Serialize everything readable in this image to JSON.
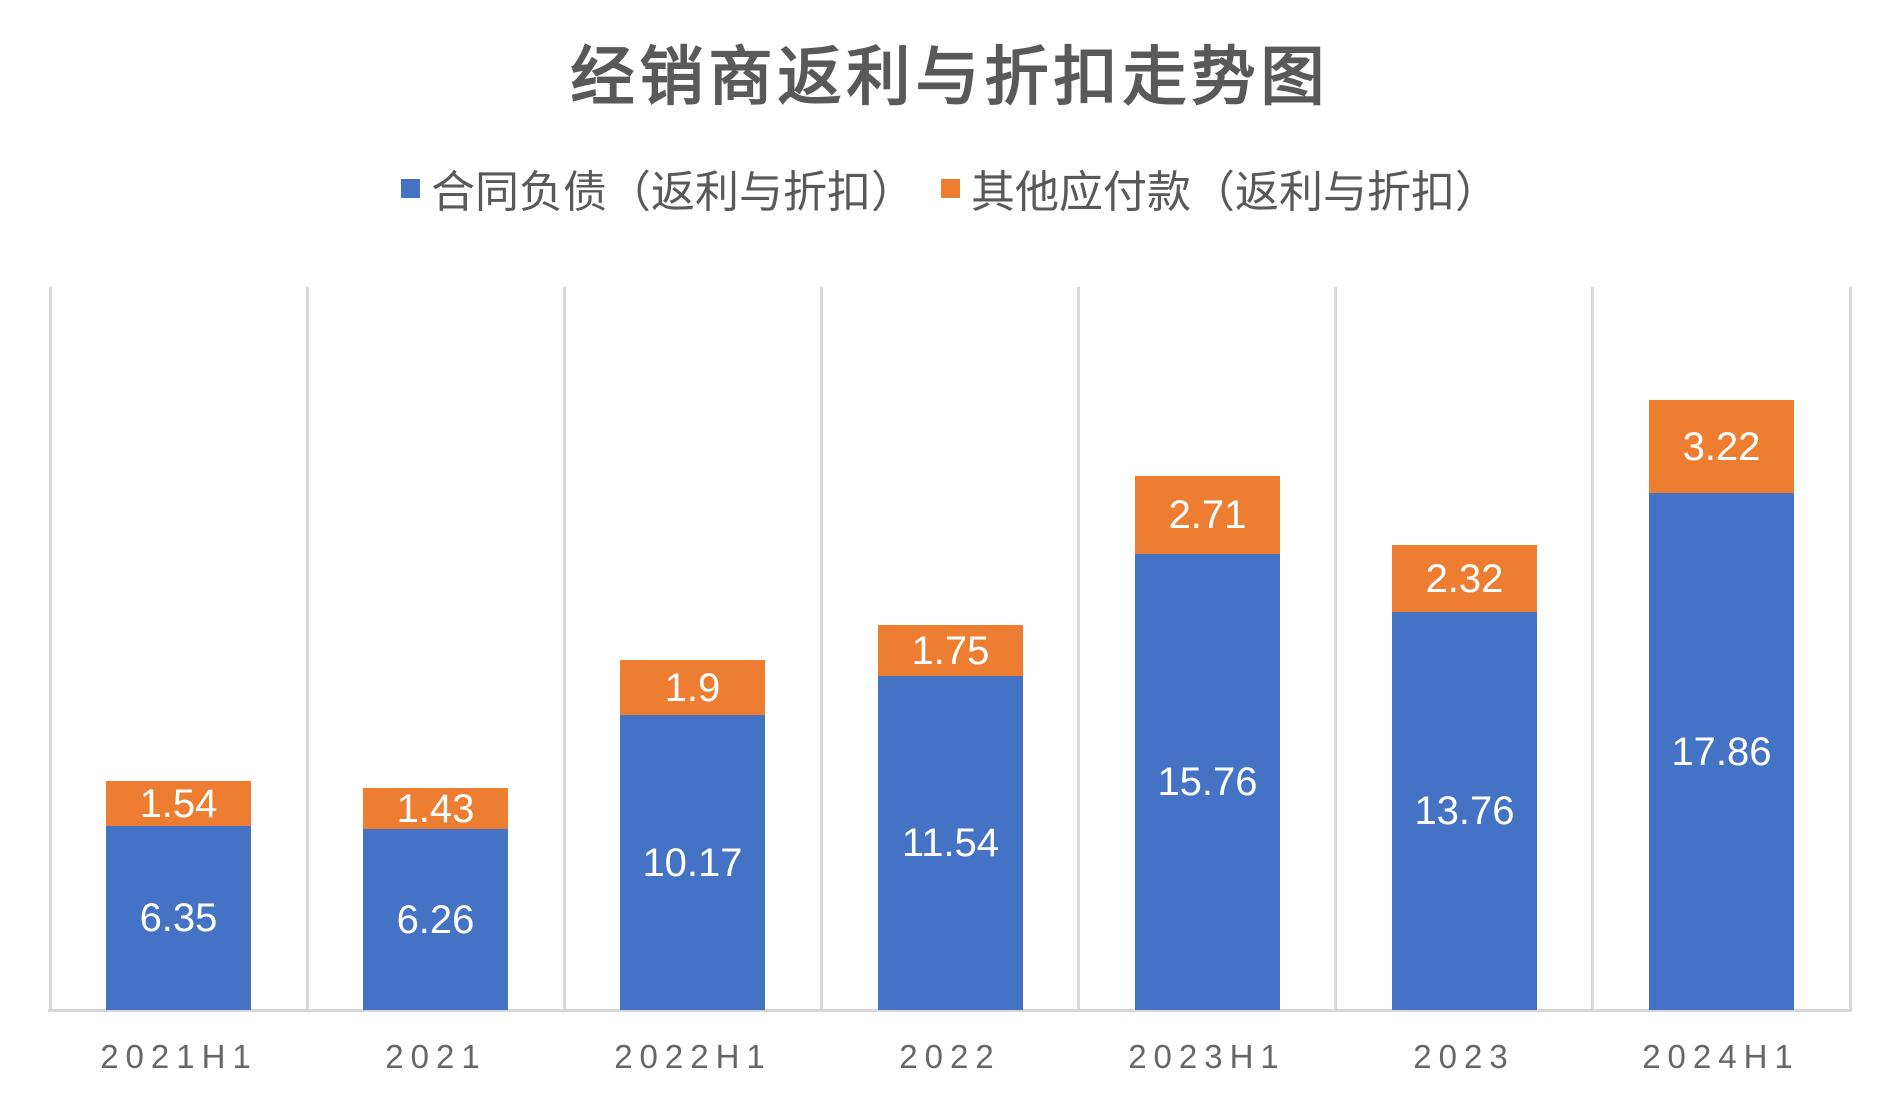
{
  "chart_data": {
    "type": "bar",
    "stacked": true,
    "title": "经销商返利与折扣走势图",
    "categories": [
      "2021H1",
      "2021",
      "2022H1",
      "2022",
      "2023H1",
      "2023",
      "2024H1"
    ],
    "series": [
      {
        "name": "合同负债（返利与折扣）",
        "color": "#4472C4",
        "values": [
          6.35,
          6.26,
          10.17,
          11.54,
          15.76,
          13.76,
          17.86
        ]
      },
      {
        "name": "其他应付款（返利与折扣）",
        "color": "#ED7D31",
        "values": [
          1.54,
          1.43,
          1.9,
          1.75,
          2.71,
          2.32,
          3.22
        ]
      }
    ],
    "xlabel": "",
    "ylabel": "",
    "ylim": [
      0,
      25
    ],
    "grid": "vertical-category-separators-only",
    "legend_position": "top-center",
    "data_labels": "inside-center-white"
  },
  "colors": {
    "background": "#FFFFFF",
    "gridline": "#D9D9D9",
    "axis_line": "#D6D6D6",
    "title_text": "#595959",
    "legend_text": "#595959",
    "category_text": "#666666",
    "data_label_text": "#FFFFFF",
    "series_blue": "#4472C4",
    "series_orange": "#ED7D31"
  }
}
